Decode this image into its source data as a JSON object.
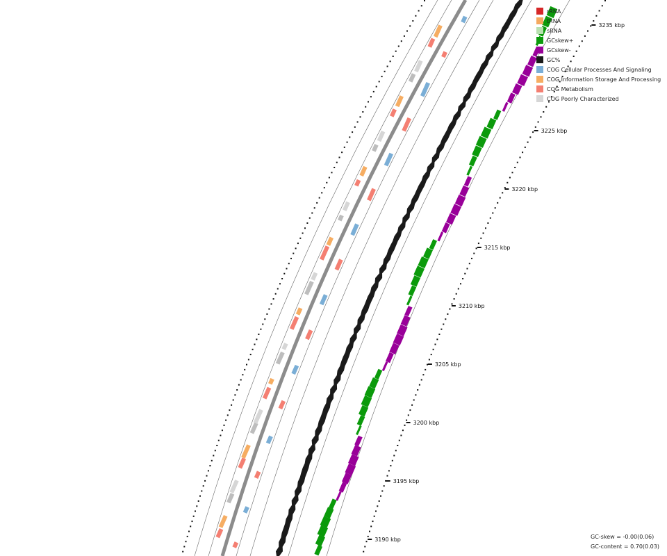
{
  "legend": [
    {
      "label": "rRNA",
      "color": "#d62728"
    },
    {
      "label": "tRNA",
      "color": "#f5a95f"
    },
    {
      "label": "sRNA",
      "color": "#b8e0b0"
    },
    {
      "label": "GCskew+",
      "color": "#0b9a0b"
    },
    {
      "label": "GCskew-",
      "color": "#990099"
    },
    {
      "label": "GC%",
      "color": "#1a1a1a"
    },
    {
      "label": "COG Cellular Processes And Signaling",
      "color": "#7aaed6"
    },
    {
      "label": "COG Information Storage And Processing",
      "color": "#f6ad62"
    },
    {
      "label": "COG Metabolism",
      "color": "#f47f72"
    },
    {
      "label": "COG Poorly Characterized",
      "color": "#d6d6d6"
    }
  ],
  "ticks": [
    {
      "label": "3190 kbp"
    },
    {
      "label": "3195 kbp"
    },
    {
      "label": "3200 kbp"
    },
    {
      "label": "3205 kbp"
    },
    {
      "label": "3210 kbp"
    },
    {
      "label": "3215 kbp"
    },
    {
      "label": "3220 kbp"
    },
    {
      "label": "3225 kbp"
    },
    {
      "label": "3235 kbp"
    }
  ],
  "stats": {
    "gc_skew": "GC-skew = -0.00(0.06)",
    "gc_content": "GC-content = 0.70(0.03)"
  },
  "colors": {
    "backbone": "#8c8c8c",
    "ring_line": "#666666",
    "gc": "#1a1a1a",
    "skew_pos": "#0b9a0b",
    "skew_neg": "#990099",
    "cog_metabolism": "#f47f72",
    "cog_info": "#f6ad62",
    "cog_cellular": "#7aaed6",
    "cog_poor": "#d6d6d6",
    "gene_grey": "#bdbdbd"
  }
}
